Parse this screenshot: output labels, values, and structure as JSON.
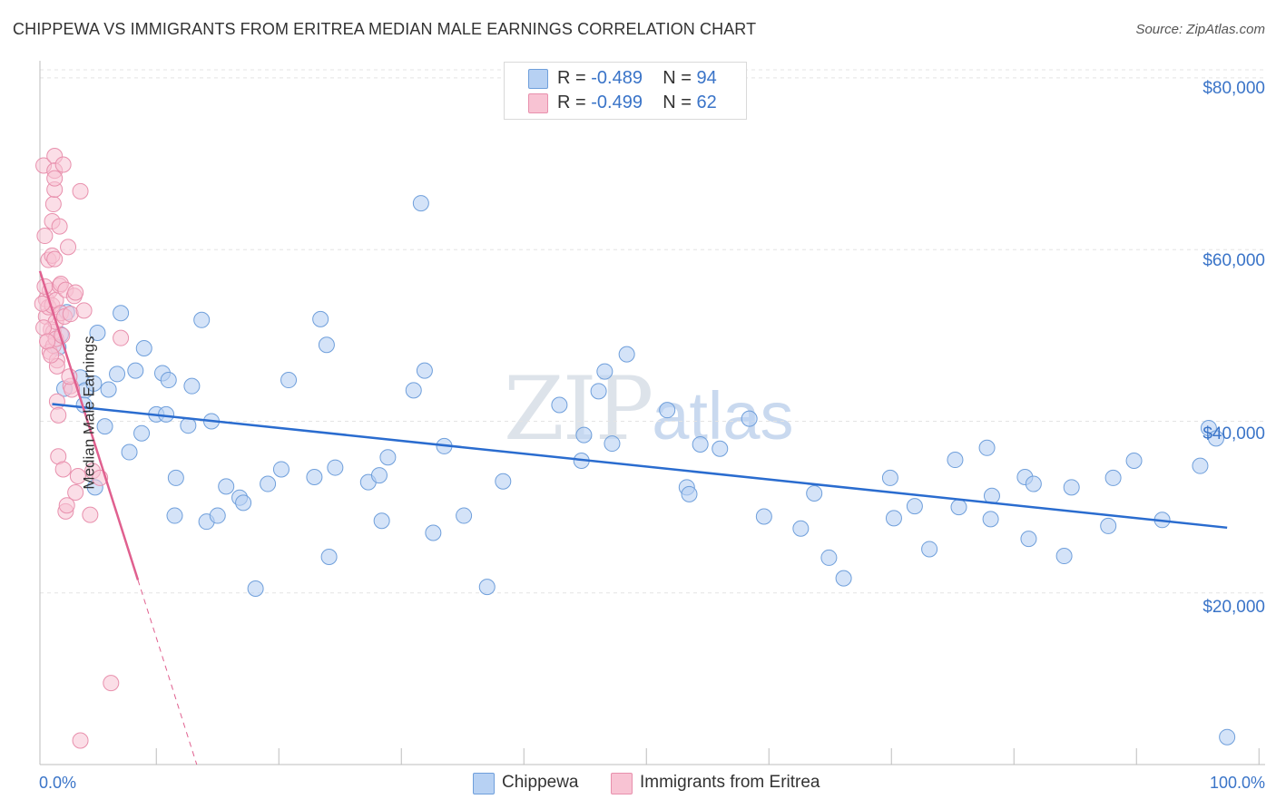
{
  "title": "CHIPPEWA VS IMMIGRANTS FROM ERITREA MEDIAN MALE EARNINGS CORRELATION CHART",
  "source": "Source: ZipAtlas.com",
  "watermark": {
    "zip": "ZIP",
    "atlas": "atlas"
  },
  "legend_top": {
    "rows": [
      {
        "r_label": "R = ",
        "r_value": "-0.489",
        "n_label": "N = ",
        "n_value": "94"
      },
      {
        "r_label": "R = ",
        "r_value": "-0.499",
        "n_label": "N = ",
        "n_value": "62"
      }
    ]
  },
  "colors": {
    "blue_fill": "#b7d1f3",
    "blue_stroke": "#6f9fdb",
    "blue_line": "#2a6ccf",
    "pink_fill": "#f8c3d3",
    "pink_stroke": "#e890ad",
    "pink_line": "#e0608f",
    "tick_text": "#3a74c8",
    "grid": "#e4e4e4"
  },
  "chart_data": {
    "type": "scatter",
    "title": "CHIPPEWA VS IMMIGRANTS FROM ERITREA MEDIAN MALE EARNINGS CORRELATION CHART",
    "xlabel": "",
    "ylabel": "Median Male Earnings",
    "x_tick_labels": [
      "0.0%",
      "100.0%"
    ],
    "y_tick_labels": [
      "$20,000",
      "$40,000",
      "$60,000",
      "$80,000"
    ],
    "y_ticks": [
      20000,
      40000,
      60000,
      80000
    ],
    "xlim": [
      0,
      100
    ],
    "ylim": [
      0,
      82000
    ],
    "grid": true,
    "legend_position": "bottom",
    "series": [
      {
        "name": "Chippewa",
        "points": [
          [
            2,
            43800
          ],
          [
            1.7,
            50100
          ],
          [
            2.2,
            52700
          ],
          [
            3.3,
            45100
          ],
          [
            3.7,
            43600
          ],
          [
            3.6,
            41900
          ],
          [
            4.4,
            44400
          ],
          [
            4.5,
            32300
          ],
          [
            4.7,
            50300
          ],
          [
            5.3,
            39400
          ],
          [
            5.6,
            43700
          ],
          [
            6.3,
            45500
          ],
          [
            6.6,
            52600
          ],
          [
            7.3,
            36400
          ],
          [
            7.8,
            45900
          ],
          [
            8.3,
            38600
          ],
          [
            8.5,
            48500
          ],
          [
            9.5,
            40800
          ],
          [
            10,
            45600
          ],
          [
            10.3,
            40800
          ],
          [
            10.5,
            44800
          ],
          [
            11,
            29000
          ],
          [
            11.1,
            33400
          ],
          [
            12.1,
            39500
          ],
          [
            12.4,
            44100
          ],
          [
            13.2,
            51800
          ],
          [
            13.6,
            28300
          ],
          [
            14,
            40000
          ],
          [
            14.5,
            29000
          ],
          [
            15.2,
            32400
          ],
          [
            16.3,
            31100
          ],
          [
            16.6,
            30500
          ],
          [
            17.6,
            20500
          ],
          [
            18.6,
            32700
          ],
          [
            19.7,
            34400
          ],
          [
            20.3,
            44800
          ],
          [
            22.4,
            33500
          ],
          [
            22.9,
            51900
          ],
          [
            23.4,
            48900
          ],
          [
            23.6,
            24200
          ],
          [
            24.1,
            34600
          ],
          [
            26.8,
            32900
          ],
          [
            27.7,
            33700
          ],
          [
            27.9,
            28400
          ],
          [
            28.4,
            35800
          ],
          [
            30.5,
            43600
          ],
          [
            31.1,
            65400
          ],
          [
            31.4,
            45900
          ],
          [
            32.1,
            27000
          ],
          [
            33,
            37100
          ],
          [
            34.6,
            29000
          ],
          [
            36.5,
            20700
          ],
          [
            37.8,
            33000
          ],
          [
            42.4,
            41900
          ],
          [
            44.2,
            35400
          ],
          [
            44.4,
            38400
          ],
          [
            45.6,
            43500
          ],
          [
            46.1,
            45800
          ],
          [
            46.7,
            37400
          ],
          [
            47.9,
            47800
          ],
          [
            51.2,
            41300
          ],
          [
            52.8,
            32300
          ],
          [
            53,
            31500
          ],
          [
            53.9,
            37300
          ],
          [
            55.5,
            36800
          ],
          [
            57.9,
            40300
          ],
          [
            59.1,
            28900
          ],
          [
            62.1,
            27500
          ],
          [
            63.2,
            31600
          ],
          [
            64.4,
            24100
          ],
          [
            65.6,
            21700
          ],
          [
            69.4,
            33400
          ],
          [
            69.7,
            28700
          ],
          [
            71.4,
            30100
          ],
          [
            72.6,
            25100
          ],
          [
            74.7,
            35500
          ],
          [
            75,
            30000
          ],
          [
            77.3,
            36900
          ],
          [
            77.6,
            28600
          ],
          [
            77.7,
            31300
          ],
          [
            80.4,
            33500
          ],
          [
            80.7,
            26300
          ],
          [
            81.1,
            32700
          ],
          [
            83.6,
            24300
          ],
          [
            84.2,
            32300
          ],
          [
            87.2,
            27800
          ],
          [
            87.6,
            33400
          ],
          [
            89.3,
            35400
          ],
          [
            91.6,
            28500
          ],
          [
            94.7,
            34800
          ],
          [
            95.4,
            39200
          ],
          [
            96,
            38000
          ],
          [
            96.9,
            3200
          ],
          [
            1.5,
            48600
          ]
        ],
        "trend": {
          "x": [
            1,
            96.9
          ],
          "y": [
            42000,
            27600
          ]
        }
      },
      {
        "name": "Immigrants from Eritrea",
        "points": [
          [
            0.3,
            69800
          ],
          [
            0.4,
            61600
          ],
          [
            0.5,
            54200
          ],
          [
            0.5,
            52200
          ],
          [
            0.6,
            49300
          ],
          [
            0.7,
            58800
          ],
          [
            0.7,
            53300
          ],
          [
            0.8,
            48100
          ],
          [
            0.8,
            55200
          ],
          [
            0.9,
            50700
          ],
          [
            1,
            63300
          ],
          [
            1,
            59300
          ],
          [
            1,
            53500
          ],
          [
            1.1,
            65300
          ],
          [
            1.1,
            50400
          ],
          [
            1.1,
            48800
          ],
          [
            1.2,
            70900
          ],
          [
            1.2,
            69200
          ],
          [
            1.2,
            67000
          ],
          [
            1.2,
            68300
          ],
          [
            1.2,
            58900
          ],
          [
            1.3,
            51600
          ],
          [
            1.3,
            49600
          ],
          [
            1.3,
            54100
          ],
          [
            1.4,
            47100
          ],
          [
            1.4,
            46400
          ],
          [
            1.4,
            42300
          ],
          [
            1.5,
            40700
          ],
          [
            1.5,
            35900
          ],
          [
            1.6,
            62700
          ],
          [
            1.6,
            55800
          ],
          [
            1.7,
            56000
          ],
          [
            1.7,
            52600
          ],
          [
            1.8,
            50000
          ],
          [
            1.9,
            34400
          ],
          [
            1.9,
            69900
          ],
          [
            2,
            52200
          ],
          [
            2.1,
            55300
          ],
          [
            2.1,
            29500
          ],
          [
            2.2,
            30200
          ],
          [
            2.3,
            60300
          ],
          [
            2.5,
            52500
          ],
          [
            2.5,
            44100
          ],
          [
            2.6,
            43700
          ],
          [
            2.8,
            54600
          ],
          [
            2.9,
            55000
          ],
          [
            2.9,
            31700
          ],
          [
            3.1,
            33600
          ],
          [
            3.3,
            66800
          ],
          [
            3.6,
            52900
          ],
          [
            4.1,
            29100
          ],
          [
            4.3,
            34200
          ],
          [
            4.9,
            33400
          ],
          [
            5.8,
            9500
          ],
          [
            6.6,
            49700
          ],
          [
            3.3,
            2800
          ],
          [
            0.2,
            53700
          ],
          [
            0.3,
            50900
          ],
          [
            0.6,
            49300
          ],
          [
            0.9,
            47700
          ],
          [
            2.4,
            45200
          ],
          [
            0.4,
            55700
          ]
        ],
        "trend": {
          "x": [
            0,
            8
          ],
          "y": [
            57500,
            21500
          ]
        },
        "trend_extension": {
          "x": [
            8,
            12.8
          ],
          "y": [
            21500,
            0
          ]
        }
      }
    ]
  },
  "legend_bottom": [
    "Chippewa",
    "Immigrants from Eritrea"
  ]
}
